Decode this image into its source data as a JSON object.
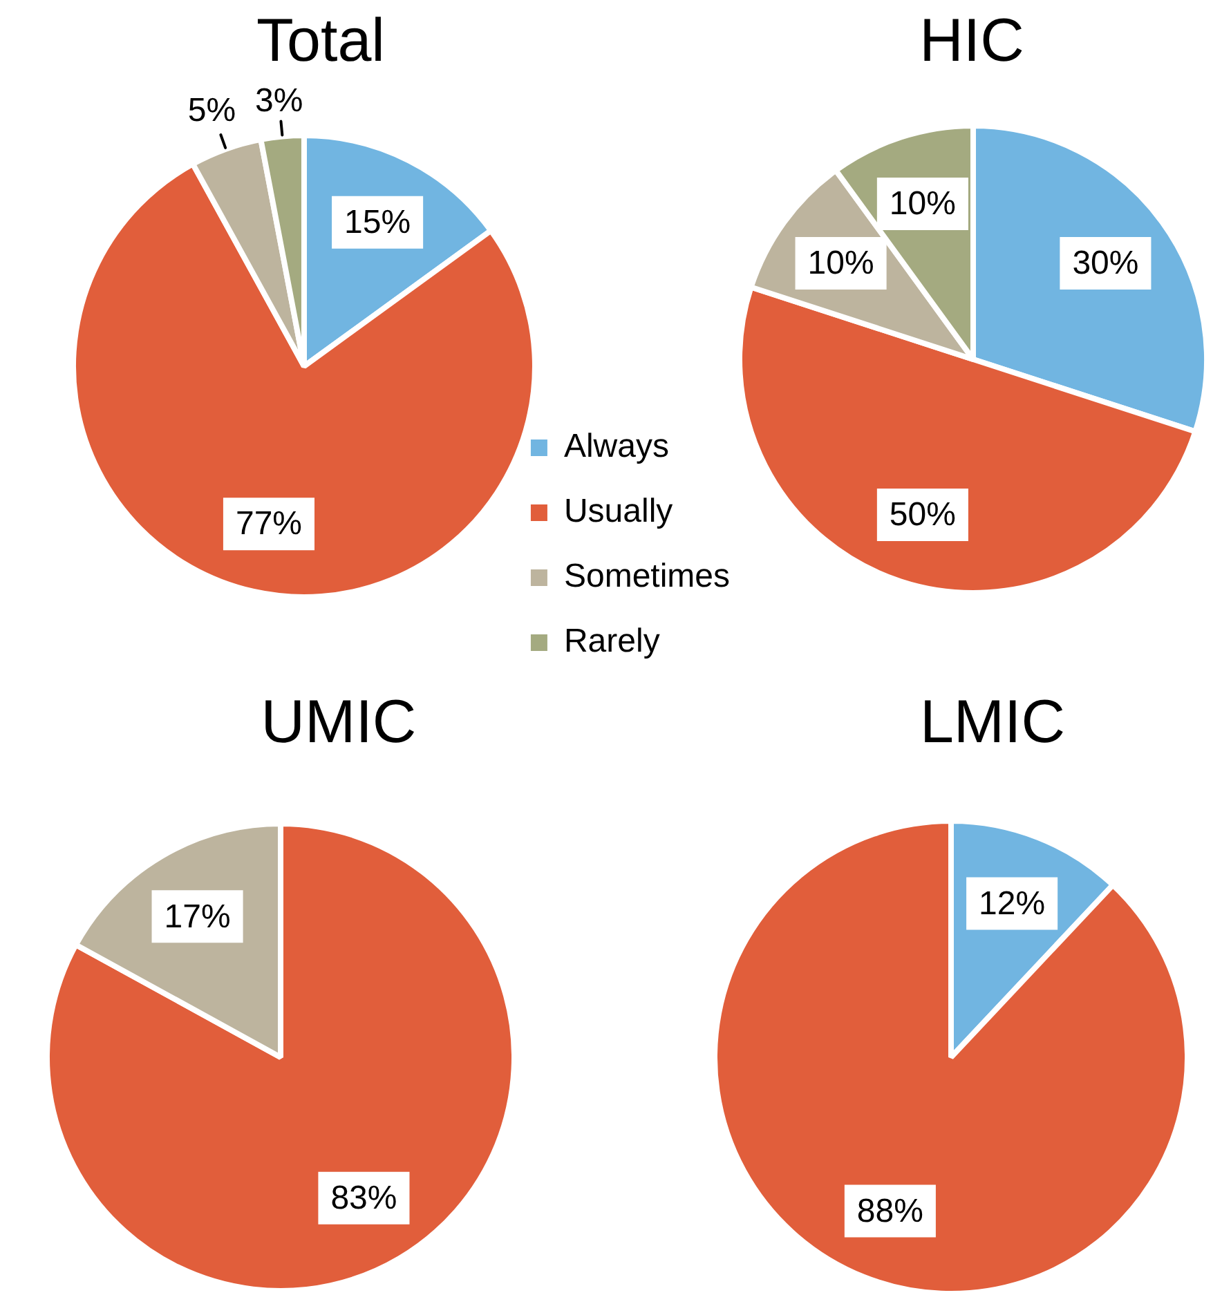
{
  "chart_data": [
    {
      "type": "pie",
      "title": "Total",
      "categories": [
        "Always",
        "Usually",
        "Sometimes",
        "Rarely"
      ],
      "values": [
        15,
        77,
        5,
        3
      ],
      "colors": [
        "#71b5e1",
        "#e15e3b",
        "#bdb49e",
        "#a4aa80"
      ],
      "value_labels": [
        "15%",
        "77%",
        "5%",
        "3%"
      ],
      "legend": "right"
    },
    {
      "type": "pie",
      "title": "HIC",
      "categories": [
        null,
        null,
        null,
        null
      ],
      "values": [
        30,
        50,
        10,
        10
      ],
      "colors": [
        "#71b5e1",
        "#e15e3b",
        "#bdb49e",
        "#a4aa80"
      ],
      "value_labels": [
        "30%",
        "50%",
        "10%",
        "10%"
      ]
    },
    {
      "type": "pie",
      "title": "UMIC",
      "categories": [
        null,
        null
      ],
      "values": [
        83,
        17
      ],
      "colors": [
        "#e15e3b",
        "#bdb49e"
      ],
      "value_labels": [
        "83%",
        "17%"
      ]
    },
    {
      "type": "pie",
      "title": "LMIC",
      "categories": [
        null,
        null
      ],
      "values": [
        12,
        88
      ],
      "colors": [
        "#71b5e1",
        "#e15e3b"
      ],
      "value_labels": [
        "12%",
        "88%"
      ]
    }
  ]
}
